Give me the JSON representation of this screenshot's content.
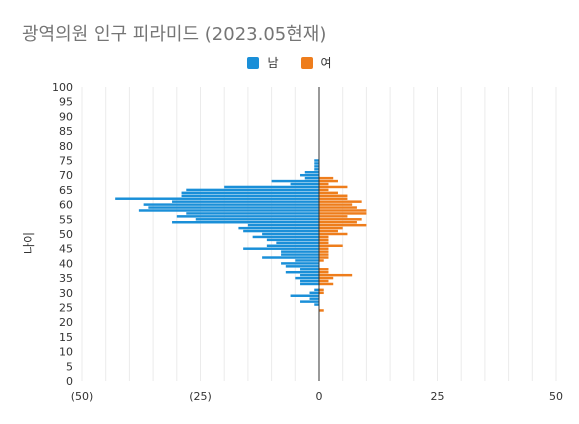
{
  "chart_data": {
    "type": "bar",
    "orientation": "horizontal",
    "layout": "population-pyramid",
    "title": "광역의원 인구 피라미드 (2023.05현재)",
    "ylabel": "나이",
    "xlabel": "",
    "xlim": [
      -50,
      50
    ],
    "ylim": [
      0,
      100
    ],
    "x_tick_labels": [
      "(50)",
      "(25)",
      "0",
      "25",
      "50"
    ],
    "x_tick_values": [
      -50,
      -25,
      0,
      25,
      50
    ],
    "y_tick_values": [
      0,
      5,
      10,
      15,
      20,
      25,
      30,
      35,
      40,
      45,
      50,
      55,
      60,
      65,
      70,
      75,
      80,
      85,
      90,
      95,
      100
    ],
    "grid": "vertical",
    "legend_position": "top-center",
    "colors": {
      "male": "#1a8fd8",
      "female": "#ee7d1c",
      "title": "#757575",
      "grid": "#ebebeb",
      "axis": "#333333"
    },
    "series": [
      {
        "name": "남",
        "key": "male",
        "points": [
          {
            "age": 26,
            "value": 1
          },
          {
            "age": 27,
            "value": 4
          },
          {
            "age": 28,
            "value": 2
          },
          {
            "age": 29,
            "value": 6
          },
          {
            "age": 30,
            "value": 2
          },
          {
            "age": 31,
            "value": 1
          },
          {
            "age": 33,
            "value": 4
          },
          {
            "age": 34,
            "value": 4
          },
          {
            "age": 35,
            "value": 5
          },
          {
            "age": 36,
            "value": 4
          },
          {
            "age": 37,
            "value": 7
          },
          {
            "age": 38,
            "value": 4
          },
          {
            "age": 39,
            "value": 7
          },
          {
            "age": 40,
            "value": 8
          },
          {
            "age": 41,
            "value": 5
          },
          {
            "age": 42,
            "value": 12
          },
          {
            "age": 43,
            "value": 8
          },
          {
            "age": 44,
            "value": 8
          },
          {
            "age": 45,
            "value": 16
          },
          {
            "age": 46,
            "value": 11
          },
          {
            "age": 47,
            "value": 9
          },
          {
            "age": 48,
            "value": 11
          },
          {
            "age": 49,
            "value": 14
          },
          {
            "age": 50,
            "value": 12
          },
          {
            "age": 51,
            "value": 16
          },
          {
            "age": 52,
            "value": 17
          },
          {
            "age": 53,
            "value": 15
          },
          {
            "age": 54,
            "value": 31
          },
          {
            "age": 55,
            "value": 26
          },
          {
            "age": 56,
            "value": 30
          },
          {
            "age": 57,
            "value": 28
          },
          {
            "age": 58,
            "value": 38
          },
          {
            "age": 59,
            "value": 36
          },
          {
            "age": 60,
            "value": 37
          },
          {
            "age": 61,
            "value": 31
          },
          {
            "age": 62,
            "value": 43
          },
          {
            "age": 63,
            "value": 29
          },
          {
            "age": 64,
            "value": 29
          },
          {
            "age": 65,
            "value": 28
          },
          {
            "age": 66,
            "value": 20
          },
          {
            "age": 67,
            "value": 6
          },
          {
            "age": 68,
            "value": 10
          },
          {
            "age": 69,
            "value": 3
          },
          {
            "age": 70,
            "value": 4
          },
          {
            "age": 71,
            "value": 3
          },
          {
            "age": 72,
            "value": 1
          },
          {
            "age": 73,
            "value": 1
          },
          {
            "age": 74,
            "value": 1
          },
          {
            "age": 75,
            "value": 1
          }
        ]
      },
      {
        "name": "여",
        "key": "female",
        "points": [
          {
            "age": 24,
            "value": 1
          },
          {
            "age": 30,
            "value": 1
          },
          {
            "age": 31,
            "value": 1
          },
          {
            "age": 33,
            "value": 3
          },
          {
            "age": 34,
            "value": 2
          },
          {
            "age": 35,
            "value": 3
          },
          {
            "age": 36,
            "value": 7
          },
          {
            "age": 37,
            "value": 2
          },
          {
            "age": 38,
            "value": 2
          },
          {
            "age": 41,
            "value": 1
          },
          {
            "age": 42,
            "value": 2
          },
          {
            "age": 43,
            "value": 2
          },
          {
            "age": 44,
            "value": 2
          },
          {
            "age": 45,
            "value": 2
          },
          {
            "age": 46,
            "value": 5
          },
          {
            "age": 47,
            "value": 2
          },
          {
            "age": 48,
            "value": 2
          },
          {
            "age": 49,
            "value": 2
          },
          {
            "age": 50,
            "value": 6
          },
          {
            "age": 51,
            "value": 4
          },
          {
            "age": 52,
            "value": 5
          },
          {
            "age": 53,
            "value": 10
          },
          {
            "age": 54,
            "value": 8
          },
          {
            "age": 55,
            "value": 9
          },
          {
            "age": 56,
            "value": 6
          },
          {
            "age": 57,
            "value": 10
          },
          {
            "age": 58,
            "value": 10
          },
          {
            "age": 59,
            "value": 8
          },
          {
            "age": 60,
            "value": 7
          },
          {
            "age": 61,
            "value": 9
          },
          {
            "age": 62,
            "value": 6
          },
          {
            "age": 63,
            "value": 6
          },
          {
            "age": 64,
            "value": 4
          },
          {
            "age": 65,
            "value": 2
          },
          {
            "age": 66,
            "value": 6
          },
          {
            "age": 67,
            "value": 2
          },
          {
            "age": 68,
            "value": 4
          },
          {
            "age": 69,
            "value": 3
          }
        ]
      }
    ]
  }
}
